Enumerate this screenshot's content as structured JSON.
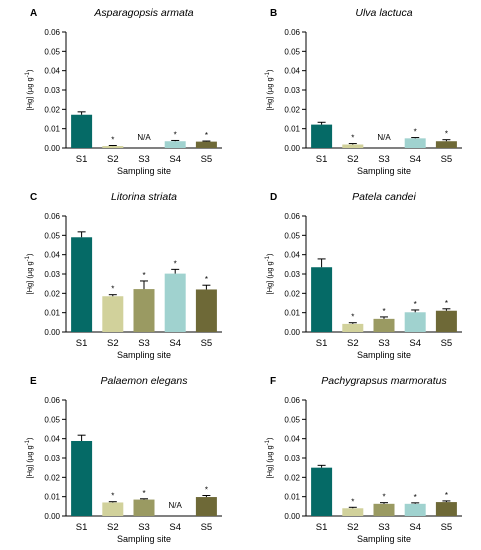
{
  "colors": {
    "S1": "#056a66",
    "S2": "#d1d19b",
    "S3": "#9a9a62",
    "S4": "#a0d2cf",
    "S5": "#6e6937"
  },
  "chart_data": [
    {
      "type": "bar",
      "panel": "A",
      "title": "Asparagopsis armata",
      "xlabel": "Sampling site",
      "ylabel": "[Hg] (µg g",
      "ylabel_sup": "-1",
      "ylabel_end": ")",
      "categories": [
        "S1",
        "S2",
        "S3",
        "S4",
        "S5"
      ],
      "values": [
        0.0172,
        0.001,
        null,
        0.0035,
        0.0033
      ],
      "errors": [
        0.0015,
        0.0003,
        null,
        0.0004,
        0.0003
      ],
      "labels": [
        "",
        "*",
        "N/A",
        "*",
        "*"
      ],
      "ylim": [
        0,
        0.06
      ],
      "yticks": [
        "0.00",
        "0.01",
        "0.02",
        "0.03",
        "0.04",
        "0.05",
        "0.06"
      ]
    },
    {
      "type": "bar",
      "panel": "B",
      "title": "Ulva lactuca",
      "xlabel": "Sampling site",
      "ylabel": "[Hg] (µg g",
      "ylabel_sup": "-1",
      "ylabel_end": ")",
      "categories": [
        "S1",
        "S2",
        "S3",
        "S4",
        "S5"
      ],
      "values": [
        0.0121,
        0.0018,
        null,
        0.005,
        0.0035
      ],
      "errors": [
        0.0012,
        0.0005,
        null,
        0.0004,
        0.0008
      ],
      "labels": [
        "",
        "*",
        "N/A",
        "*",
        "*"
      ],
      "ylim": [
        0,
        0.06
      ],
      "yticks": [
        "0.00",
        "0.01",
        "0.02",
        "0.03",
        "0.04",
        "0.05",
        "0.06"
      ]
    },
    {
      "type": "bar",
      "panel": "C",
      "title": "Litorina striata",
      "xlabel": "Sampling site",
      "ylabel": "[Hg] (µg g",
      "ylabel_sup": "-1",
      "ylabel_end": ")",
      "categories": [
        "S1",
        "S2",
        "S3",
        "S4",
        "S5"
      ],
      "values": [
        0.049,
        0.0185,
        0.0222,
        0.0302,
        0.022
      ],
      "errors": [
        0.0028,
        0.0008,
        0.0042,
        0.0022,
        0.0022
      ],
      "labels": [
        "",
        "*",
        "*",
        "*",
        "*"
      ],
      "ylim": [
        0,
        0.06
      ],
      "yticks": [
        "0.00",
        "0.01",
        "0.02",
        "0.03",
        "0.04",
        "0.05",
        "0.06"
      ]
    },
    {
      "type": "bar",
      "panel": "D",
      "title": "Patela candei",
      "xlabel": "Sampling site",
      "ylabel": "[Hg] (µg g",
      "ylabel_sup": "-1",
      "ylabel_end": ")",
      "categories": [
        "S1",
        "S2",
        "S3",
        "S4",
        "S5"
      ],
      "values": [
        0.0335,
        0.0042,
        0.0068,
        0.0102,
        0.011
      ],
      "errors": [
        0.0043,
        0.0006,
        0.001,
        0.0012,
        0.001
      ],
      "labels": [
        "",
        "*",
        "*",
        "*",
        "*"
      ],
      "ylim": [
        0,
        0.06
      ],
      "yticks": [
        "0.00",
        "0.01",
        "0.02",
        "0.03",
        "0.04",
        "0.05",
        "0.06"
      ]
    },
    {
      "type": "bar",
      "panel": "E",
      "title": "Palaemon elegans",
      "xlabel": "Sampling site",
      "ylabel": "[Hg] (µg g",
      "ylabel_sup": "-1",
      "ylabel_end": ")",
      "categories": [
        "S1",
        "S2",
        "S3",
        "S4",
        "S5"
      ],
      "values": [
        0.0388,
        0.007,
        0.0085,
        null,
        0.0098
      ],
      "errors": [
        0.003,
        0.0004,
        0.0004,
        null,
        0.0008
      ],
      "labels": [
        "",
        "*",
        "*",
        "N/A",
        "*"
      ],
      "ylim": [
        0,
        0.06
      ],
      "yticks": [
        "0.00",
        "0.01",
        "0.02",
        "0.03",
        "0.04",
        "0.05",
        "0.06"
      ]
    },
    {
      "type": "bar",
      "panel": "F",
      "title": "Pachygrapsus marmoratus",
      "xlabel": "Sampling site",
      "ylabel": "[Hg] (µg g",
      "ylabel_sup": "-1",
      "ylabel_end": ")",
      "categories": [
        "S1",
        "S2",
        "S3",
        "S4",
        "S5"
      ],
      "values": [
        0.025,
        0.004,
        0.0063,
        0.0063,
        0.0072
      ],
      "errors": [
        0.0012,
        0.0005,
        0.0006,
        0.0005,
        0.0006
      ],
      "labels": [
        "",
        "*",
        "*",
        "*",
        "*"
      ],
      "ylim": [
        0,
        0.06
      ],
      "yticks": [
        "0.00",
        "0.01",
        "0.02",
        "0.03",
        "0.04",
        "0.05",
        "0.06"
      ]
    }
  ]
}
